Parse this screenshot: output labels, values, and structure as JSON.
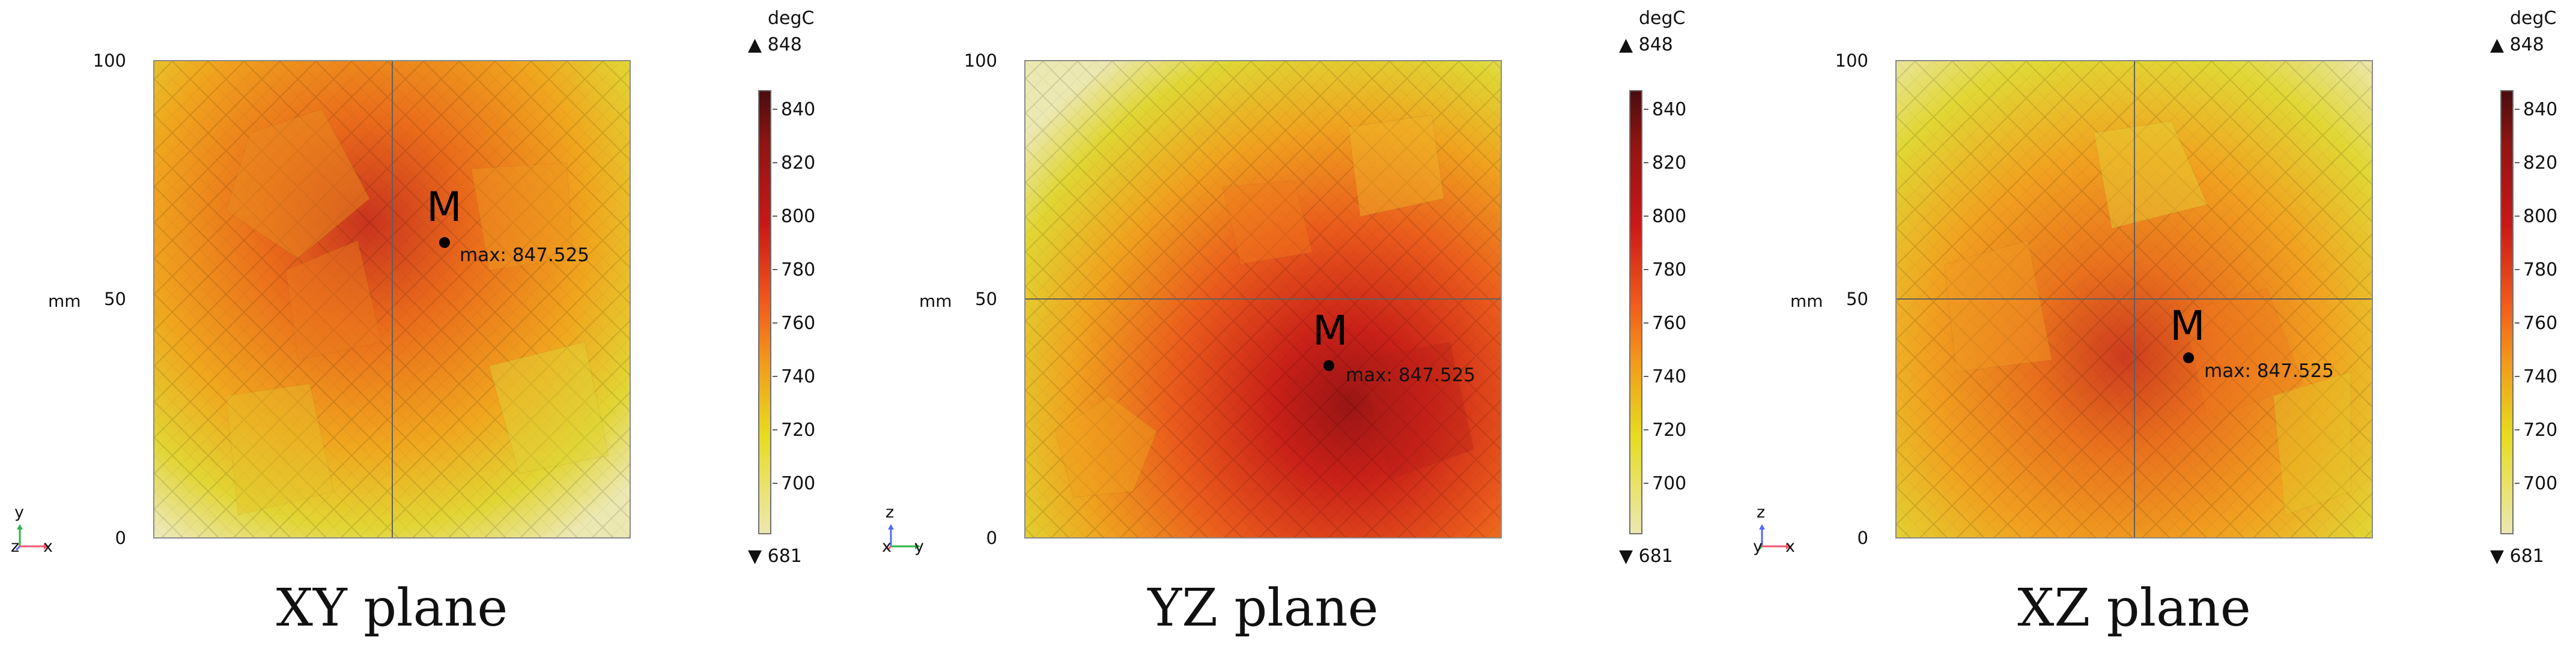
{
  "panels": [
    {
      "title": "XY plane",
      "axis_unit": "mm",
      "y_ticks": [
        "100",
        "50",
        "0"
      ],
      "marker": "M",
      "max_label": "max: 847.525",
      "triad": {
        "vertical": "y",
        "horizontal": "x",
        "third": "z"
      },
      "legend": {
        "unit": "degC",
        "max": "848",
        "min": "681",
        "ticks": [
          "840",
          "820",
          "800",
          "780",
          "760",
          "740",
          "720",
          "700"
        ]
      }
    },
    {
      "title": "YZ plane",
      "axis_unit": "mm",
      "y_ticks": [
        "100",
        "50",
        "0"
      ],
      "marker": "M",
      "max_label": "max: 847.525",
      "triad": {
        "vertical": "z",
        "horizontal": "y",
        "third": "x"
      },
      "legend": {
        "unit": "degC",
        "max": "848",
        "min": "681",
        "ticks": [
          "840",
          "820",
          "800",
          "780",
          "760",
          "740",
          "720",
          "700"
        ]
      }
    },
    {
      "title": "XZ plane",
      "axis_unit": "mm",
      "y_ticks": [
        "100",
        "50",
        "0"
      ],
      "marker": "M",
      "max_label": "max: 847.525",
      "triad": {
        "vertical": "z",
        "horizontal": "x",
        "third": "y"
      },
      "legend": {
        "unit": "degC",
        "max": "848",
        "min": "681",
        "ticks": [
          "840",
          "820",
          "800",
          "780",
          "760",
          "740",
          "720",
          "700"
        ]
      }
    }
  ],
  "colors": {
    "dark_red": "#7a1212",
    "red": "#d9341f",
    "orange": "#ef8d1b",
    "yellow": "#e6dc1f",
    "pale_yellow": "#ece8b2",
    "grid_line": "#666666"
  }
}
